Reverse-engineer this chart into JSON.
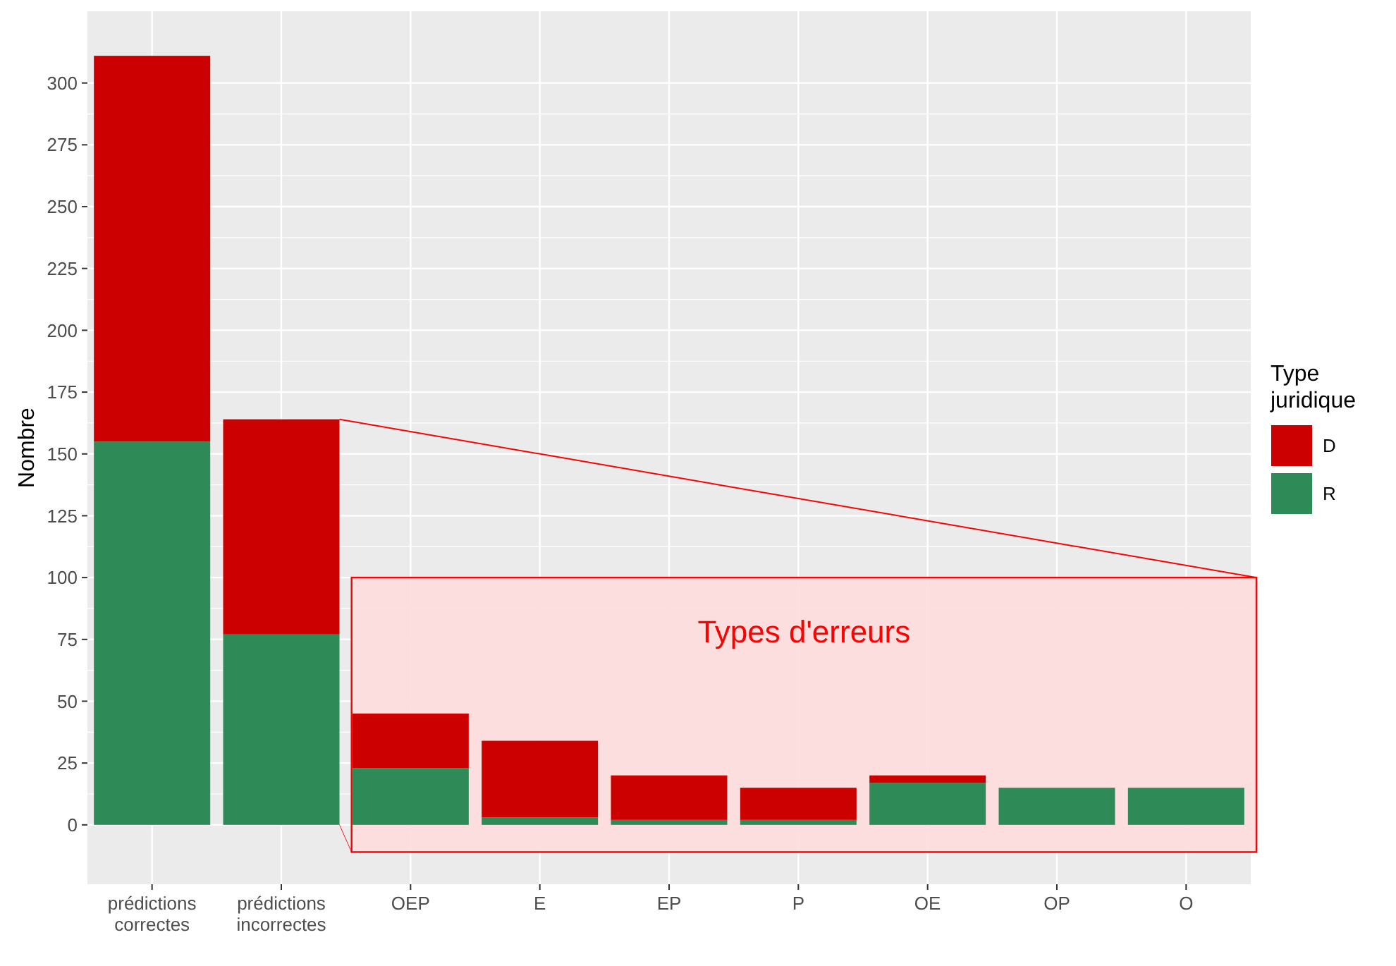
{
  "chart_data": {
    "type": "bar",
    "stacked": true,
    "ylabel": "Nombre",
    "legend_title": "Type juridique",
    "legend": "right",
    "grid": true,
    "categories": [
      "prédictions correctes",
      "prédictions incorrectes",
      "OEP",
      "E",
      "EP",
      "P",
      "OE",
      "OP",
      "O"
    ],
    "series": [
      {
        "name": "R",
        "color": "#2e8b57",
        "values": [
          155,
          77,
          23,
          3,
          2,
          2,
          17,
          15,
          15
        ]
      },
      {
        "name": "D",
        "color": "#cd0000",
        "values": [
          156,
          87,
          22,
          31,
          18,
          13,
          3,
          0,
          0
        ]
      }
    ],
    "ylim": [
      -24,
      329
    ],
    "yticks": [
      0,
      25,
      50,
      75,
      100,
      125,
      150,
      175,
      200,
      225,
      250,
      275,
      300
    ],
    "annotations": [
      "Types d'erreurs"
    ]
  }
}
